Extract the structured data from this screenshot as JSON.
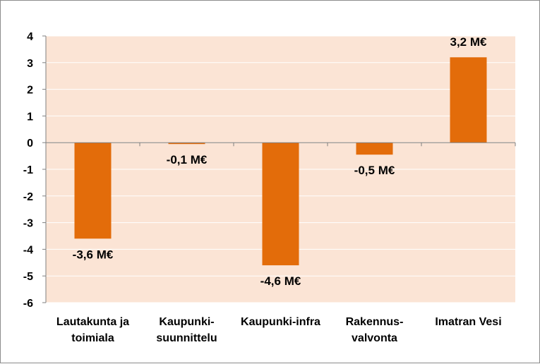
{
  "chart_data": {
    "type": "bar",
    "categories": [
      [
        "Lautakunta ja",
        "toimiala"
      ],
      [
        "Kaupunki-",
        "suunnittelu"
      ],
      [
        "Kaupunki-infra"
      ],
      [
        "Rakennus-",
        "valvonta"
      ],
      [
        "Imatran Vesi"
      ]
    ],
    "values": [
      -3.6,
      -0.05,
      -4.6,
      -0.45,
      3.2
    ],
    "data_labels": [
      "-3,6 M€",
      "-0,1 M€",
      "-4,6 M€",
      "-0,5 M€",
      "3,2 M€"
    ],
    "title": "",
    "xlabel": "",
    "ylabel": "",
    "ylim": [
      -6,
      4
    ],
    "yticks": [
      4,
      3,
      2,
      1,
      0,
      -1,
      -2,
      -3,
      -4,
      -5,
      -6
    ],
    "grid": "horizontal",
    "legend": "none"
  },
  "colors": {
    "bar": "#e36c0a",
    "plot_background": "#fbe4d5",
    "grid": "#ffffff",
    "axis": "#7f7f7f",
    "text": "#000000"
  }
}
